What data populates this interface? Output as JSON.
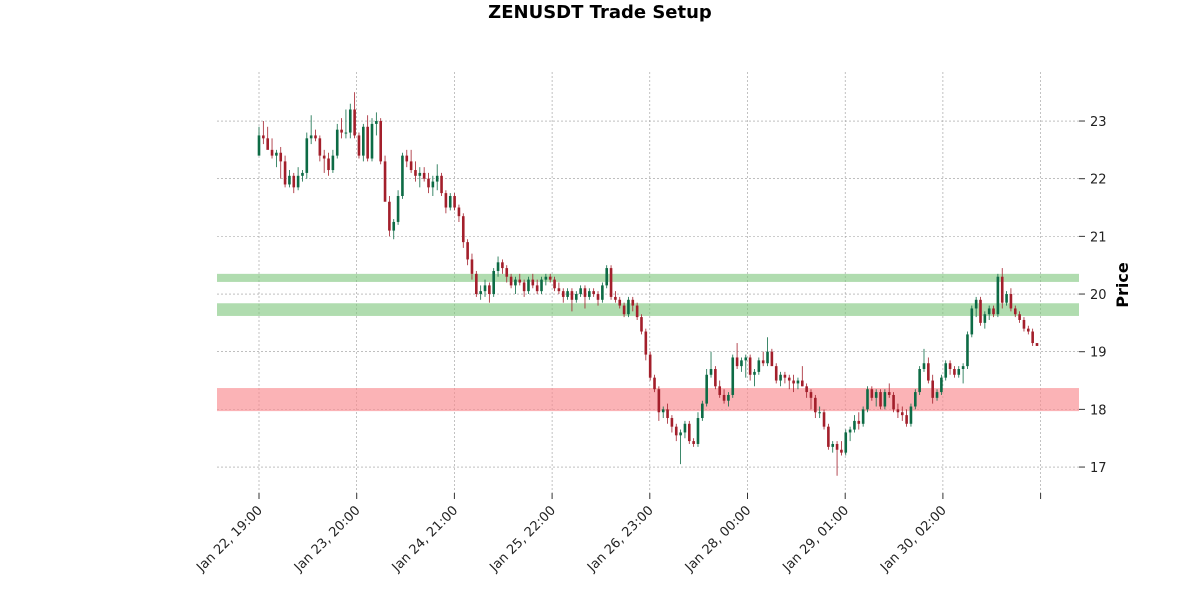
{
  "chart_data": {
    "type": "candlestick",
    "title": "ZENUSDT Trade Setup",
    "xlabel": "",
    "ylabel": "Price",
    "ylim": [
      16.55,
      23.85
    ],
    "yticks": [
      17,
      18,
      19,
      20,
      21,
      22,
      23
    ],
    "xtick_labels": [
      "Jan 22, 19:00",
      "Jan 23, 20:00",
      "Jan 24, 21:00",
      "Jan 25, 22:00",
      "Jan 26, 23:00",
      "Jan 28, 00:00",
      "Jan 29, 01:00",
      "Jan 30, 02:00",
      ""
    ],
    "grid": true,
    "colors": {
      "up": "#0d6b45",
      "down": "#a31f2b",
      "entry_zone": "#7cc47a",
      "stop_zone": "#f98b8f"
    },
    "zones": [
      {
        "label": "",
        "low": 20.21,
        "high": 20.35,
        "color": "#7cc47a"
      },
      {
        "label": "",
        "low": 19.62,
        "high": 19.84,
        "color": "#7cc47a"
      },
      {
        "label": "",
        "low": 17.97,
        "high": 18.37,
        "color": "#f98b8f"
      }
    ],
    "candles_ohlc": [
      [
        22.4,
        22.9,
        22.4,
        22.75
      ],
      [
        22.75,
        23.0,
        22.6,
        22.7
      ],
      [
        22.7,
        22.9,
        22.55,
        22.5
      ],
      [
        22.5,
        22.7,
        22.35,
        22.4
      ],
      [
        22.4,
        22.5,
        22.2,
        22.45
      ],
      [
        22.45,
        22.55,
        22.0,
        22.3
      ],
      [
        22.3,
        22.4,
        21.85,
        21.9
      ],
      [
        21.9,
        22.15,
        21.85,
        22.05
      ],
      [
        22.05,
        22.1,
        21.75,
        21.85
      ],
      [
        21.85,
        22.2,
        21.8,
        22.05
      ],
      [
        22.05,
        22.15,
        21.95,
        22.1
      ],
      [
        22.1,
        22.8,
        22.0,
        22.7
      ],
      [
        22.7,
        23.1,
        22.6,
        22.75
      ],
      [
        22.75,
        22.85,
        22.65,
        22.7
      ],
      [
        22.7,
        22.75,
        22.3,
        22.4
      ],
      [
        22.4,
        22.5,
        22.1,
        22.35
      ],
      [
        22.35,
        22.45,
        22.05,
        22.15
      ],
      [
        22.15,
        22.5,
        22.1,
        22.4
      ],
      [
        22.4,
        22.95,
        22.35,
        22.85
      ],
      [
        22.85,
        23.05,
        22.7,
        22.8
      ],
      [
        22.8,
        23.2,
        22.7,
        22.8
      ],
      [
        22.8,
        23.3,
        22.7,
        23.2
      ],
      [
        23.2,
        23.5,
        22.7,
        22.75
      ],
      [
        22.75,
        22.8,
        22.35,
        22.4
      ],
      [
        22.4,
        22.95,
        22.3,
        22.9
      ],
      [
        22.9,
        23.1,
        22.3,
        22.35
      ],
      [
        22.35,
        23.05,
        22.3,
        22.95
      ],
      [
        22.95,
        23.15,
        22.75,
        23.0
      ],
      [
        23.0,
        23.05,
        22.25,
        22.3
      ],
      [
        22.3,
        22.4,
        21.9,
        21.6
      ],
      [
        21.6,
        21.7,
        21.0,
        21.1
      ],
      [
        21.1,
        21.3,
        20.95,
        21.25
      ],
      [
        21.25,
        21.8,
        21.2,
        21.7
      ],
      [
        21.7,
        22.45,
        21.65,
        22.4
      ],
      [
        22.4,
        22.5,
        22.2,
        22.3
      ],
      [
        22.3,
        22.5,
        22.1,
        22.15
      ],
      [
        22.15,
        22.3,
        21.95,
        22.05
      ],
      [
        22.05,
        22.2,
        21.85,
        22.1
      ],
      [
        22.1,
        22.2,
        21.95,
        22.0
      ],
      [
        22.0,
        22.1,
        21.75,
        21.85
      ],
      [
        21.85,
        22.05,
        21.7,
        21.95
      ],
      [
        21.95,
        22.25,
        21.8,
        22.05
      ],
      [
        22.05,
        22.1,
        21.7,
        21.75
      ],
      [
        21.75,
        21.8,
        21.4,
        21.5
      ],
      [
        21.5,
        21.75,
        21.45,
        21.7
      ],
      [
        21.7,
        21.75,
        21.45,
        21.5
      ],
      [
        21.5,
        21.55,
        21.25,
        21.35
      ],
      [
        21.35,
        21.4,
        20.8,
        20.9
      ],
      [
        20.9,
        20.95,
        20.5,
        20.6
      ],
      [
        20.6,
        20.7,
        20.25,
        20.35
      ],
      [
        20.35,
        20.4,
        19.95,
        20.0
      ],
      [
        20.0,
        20.15,
        19.9,
        20.05
      ],
      [
        20.05,
        20.25,
        19.95,
        20.15
      ],
      [
        20.15,
        20.2,
        19.85,
        20.0
      ],
      [
        20.0,
        20.45,
        19.95,
        20.4
      ],
      [
        20.4,
        20.65,
        20.3,
        20.55
      ],
      [
        20.55,
        20.6,
        20.35,
        20.45
      ],
      [
        20.45,
        20.5,
        20.2,
        20.3
      ],
      [
        20.3,
        20.35,
        20.1,
        20.15
      ],
      [
        20.15,
        20.3,
        20.0,
        20.25
      ],
      [
        20.25,
        20.35,
        20.15,
        20.2
      ],
      [
        20.2,
        20.25,
        19.95,
        20.05
      ],
      [
        20.05,
        20.3,
        20.0,
        20.25
      ],
      [
        20.25,
        20.35,
        20.1,
        20.15
      ],
      [
        20.15,
        20.25,
        20.0,
        20.05
      ],
      [
        20.05,
        20.3,
        20.0,
        20.25
      ],
      [
        20.25,
        20.35,
        20.15,
        20.3
      ],
      [
        20.3,
        20.35,
        20.2,
        20.25
      ],
      [
        20.25,
        20.3,
        20.05,
        20.1
      ],
      [
        20.1,
        20.2,
        20.0,
        20.05
      ],
      [
        20.05,
        20.1,
        19.85,
        19.95
      ],
      [
        19.95,
        20.1,
        19.9,
        20.05
      ],
      [
        20.05,
        20.1,
        19.7,
        19.9
      ],
      [
        19.9,
        20.05,
        19.85,
        20.0
      ],
      [
        20.0,
        20.15,
        19.95,
        20.1
      ],
      [
        20.1,
        20.15,
        19.75,
        19.95
      ],
      [
        19.95,
        20.1,
        19.9,
        20.05
      ],
      [
        20.05,
        20.1,
        19.95,
        20.0
      ],
      [
        20.0,
        20.05,
        19.8,
        19.9
      ],
      [
        19.9,
        20.2,
        19.85,
        20.15
      ],
      [
        20.15,
        20.5,
        20.1,
        20.45
      ],
      [
        20.45,
        20.5,
        19.9,
        19.95
      ],
      [
        19.95,
        20.05,
        19.85,
        19.9
      ],
      [
        19.9,
        19.95,
        19.75,
        19.8
      ],
      [
        19.8,
        19.85,
        19.6,
        19.65
      ],
      [
        19.65,
        19.95,
        19.6,
        19.9
      ],
      [
        19.9,
        19.95,
        19.7,
        19.8
      ],
      [
        19.8,
        19.85,
        19.55,
        19.6
      ],
      [
        19.6,
        19.65,
        19.3,
        19.35
      ],
      [
        19.35,
        19.4,
        18.85,
        18.95
      ],
      [
        18.95,
        19.0,
        18.5,
        18.55
      ],
      [
        18.55,
        18.6,
        18.3,
        18.35
      ],
      [
        18.35,
        18.4,
        17.8,
        17.95
      ],
      [
        17.95,
        18.05,
        17.85,
        18.0
      ],
      [
        18.0,
        18.1,
        17.75,
        17.85
      ],
      [
        17.85,
        17.9,
        17.6,
        17.7
      ],
      [
        17.7,
        17.75,
        17.45,
        17.55
      ],
      [
        17.55,
        17.65,
        17.05,
        17.6
      ],
      [
        17.6,
        17.8,
        17.5,
        17.75
      ],
      [
        17.75,
        17.8,
        17.4,
        17.45
      ],
      [
        17.45,
        17.5,
        17.35,
        17.4
      ],
      [
        17.4,
        17.95,
        17.35,
        17.85
      ],
      [
        17.85,
        18.15,
        17.8,
        18.1
      ],
      [
        18.1,
        18.7,
        18.05,
        18.6
      ],
      [
        18.6,
        19.0,
        18.55,
        18.7
      ],
      [
        18.7,
        18.75,
        18.35,
        18.4
      ],
      [
        18.4,
        18.5,
        18.2,
        18.25
      ],
      [
        18.25,
        18.35,
        18.1,
        18.15
      ],
      [
        18.15,
        18.3,
        18.05,
        18.25
      ],
      [
        18.25,
        18.95,
        18.2,
        18.9
      ],
      [
        18.9,
        19.15,
        18.7,
        18.75
      ],
      [
        18.75,
        18.9,
        18.65,
        18.85
      ],
      [
        18.85,
        18.95,
        18.55,
        18.9
      ],
      [
        18.9,
        18.95,
        18.5,
        18.6
      ],
      [
        18.6,
        18.7,
        18.4,
        18.65
      ],
      [
        18.65,
        18.9,
        18.6,
        18.85
      ],
      [
        18.85,
        19.0,
        18.75,
        18.8
      ],
      [
        18.8,
        19.25,
        18.75,
        19.0
      ],
      [
        19.0,
        19.05,
        18.8,
        18.75
      ],
      [
        18.75,
        18.8,
        18.45,
        18.5
      ],
      [
        18.5,
        18.65,
        18.4,
        18.6
      ],
      [
        18.6,
        18.65,
        18.45,
        18.55
      ],
      [
        18.55,
        18.6,
        18.35,
        18.5
      ],
      [
        18.5,
        18.6,
        18.3,
        18.45
      ],
      [
        18.45,
        18.55,
        18.35,
        18.5
      ],
      [
        18.5,
        18.75,
        18.4,
        18.4
      ],
      [
        18.4,
        18.45,
        18.2,
        18.3
      ],
      [
        18.3,
        18.35,
        18.0,
        18.2
      ],
      [
        18.2,
        18.25,
        17.85,
        17.95
      ],
      [
        17.95,
        18.05,
        17.85,
        17.95
      ],
      [
        17.95,
        18.0,
        17.65,
        17.7
      ],
      [
        17.7,
        17.75,
        17.3,
        17.35
      ],
      [
        17.35,
        17.45,
        17.25,
        17.4
      ],
      [
        17.4,
        17.45,
        16.85,
        17.3
      ],
      [
        17.3,
        17.45,
        17.2,
        17.25
      ],
      [
        17.25,
        17.65,
        17.2,
        17.6
      ],
      [
        17.6,
        17.7,
        17.45,
        17.65
      ],
      [
        17.65,
        17.9,
        17.6,
        17.8
      ],
      [
        17.8,
        17.95,
        17.65,
        17.75
      ],
      [
        17.75,
        18.05,
        17.7,
        18.0
      ],
      [
        18.0,
        18.4,
        17.95,
        18.35
      ],
      [
        18.35,
        18.4,
        18.15,
        18.2
      ],
      [
        18.2,
        18.35,
        18.05,
        18.3
      ],
      [
        18.3,
        18.35,
        18.0,
        18.05
      ],
      [
        18.05,
        18.35,
        18.0,
        18.3
      ],
      [
        18.3,
        18.45,
        18.2,
        18.25
      ],
      [
        18.25,
        18.3,
        17.95,
        18.0
      ],
      [
        18.0,
        18.1,
        17.85,
        17.95
      ],
      [
        17.95,
        18.05,
        17.8,
        17.9
      ],
      [
        17.9,
        18.0,
        17.7,
        17.75
      ],
      [
        17.75,
        18.1,
        17.7,
        18.05
      ],
      [
        18.05,
        18.35,
        18.0,
        18.3
      ],
      [
        18.3,
        18.75,
        18.25,
        18.7
      ],
      [
        18.7,
        19.05,
        18.65,
        18.8
      ],
      [
        18.8,
        18.9,
        18.45,
        18.5
      ],
      [
        18.5,
        18.6,
        18.1,
        18.2
      ],
      [
        18.2,
        18.35,
        18.15,
        18.3
      ],
      [
        18.3,
        18.6,
        18.25,
        18.55
      ],
      [
        18.55,
        18.85,
        18.5,
        18.8
      ],
      [
        18.8,
        18.85,
        18.6,
        18.7
      ],
      [
        18.7,
        18.75,
        18.55,
        18.6
      ],
      [
        18.6,
        18.75,
        18.55,
        18.7
      ],
      [
        18.7,
        18.8,
        18.45,
        18.75
      ],
      [
        18.75,
        19.35,
        18.7,
        19.3
      ],
      [
        19.3,
        19.8,
        19.25,
        19.75
      ],
      [
        19.75,
        19.95,
        19.6,
        19.9
      ],
      [
        19.9,
        19.95,
        19.45,
        19.5
      ],
      [
        19.5,
        19.7,
        19.4,
        19.65
      ],
      [
        19.65,
        19.8,
        19.55,
        19.75
      ],
      [
        19.75,
        19.8,
        19.6,
        19.65
      ],
      [
        19.65,
        20.35,
        19.6,
        20.3
      ],
      [
        20.3,
        20.45,
        19.75,
        19.85
      ],
      [
        19.85,
        20.05,
        19.8,
        20.0
      ],
      [
        20.0,
        20.1,
        19.7,
        19.75
      ],
      [
        19.75,
        19.8,
        19.6,
        19.65
      ],
      [
        19.65,
        19.7,
        19.5,
        19.55
      ],
      [
        19.55,
        19.6,
        19.35,
        19.4
      ],
      [
        19.4,
        19.45,
        19.3,
        19.35
      ],
      [
        19.35,
        19.4,
        19.1,
        19.15
      ],
      [
        19.15,
        19.15,
        19.1,
        19.1
      ]
    ]
  }
}
